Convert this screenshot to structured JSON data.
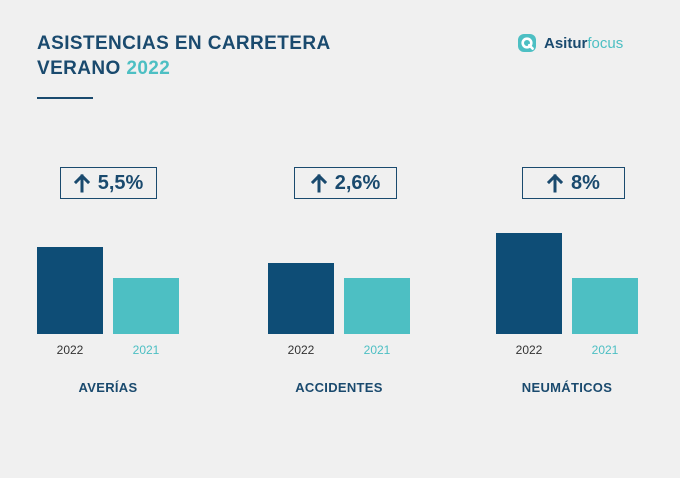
{
  "header": {
    "title_line1": "ASISTENCIAS EN CARRETERA",
    "title_line2_prefix": "VERANO ",
    "title_year": "2022"
  },
  "logo": {
    "icon": "asturfocus-logo-icon",
    "name_bold": "Asitur",
    "name_light": "focus"
  },
  "colors": {
    "primary": "#0e4d76",
    "secondary": "#4dbfc3",
    "text_dark": "#1a4a6e",
    "background": "#f0f0f0"
  },
  "chart_data": {
    "type": "bar",
    "series": [
      {
        "name": "2022",
        "color": "#0e4d76"
      },
      {
        "name": "2021",
        "color": "#4dbfc3"
      }
    ],
    "units": "relative index (2021 = 100, estimated from bar heights)",
    "groups": [
      {
        "category": "AVERÍAS",
        "change": "5,5%",
        "icon": "arrow-up-icon",
        "values": {
          "2022": 105.5,
          "2021": 100
        }
      },
      {
        "category": "ACCIDENTES",
        "change": "2,6%",
        "icon": "arrow-up-icon",
        "values": {
          "2022": 102.6,
          "2021": 100
        }
      },
      {
        "category": "NEUMÁTICOS",
        "change": "8%",
        "icon": "arrow-up-icon",
        "values": {
          "2022": 108,
          "2021": 100
        }
      }
    ],
    "ylim": [
      90,
      110
    ],
    "title": "ASISTENCIAS EN CARRETERA VERANO 2022",
    "xlabel": "",
    "ylabel": "",
    "legend": "none"
  }
}
